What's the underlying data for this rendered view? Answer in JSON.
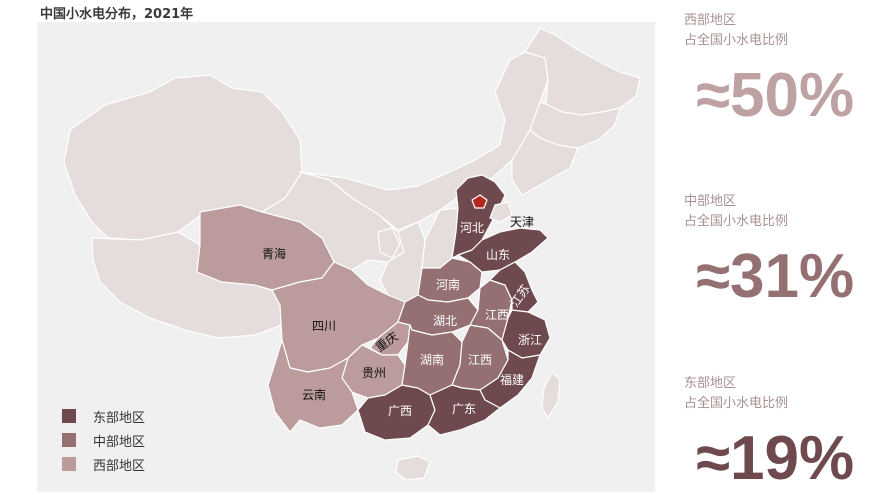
{
  "title": "中国小水电分布，2021年",
  "colors": {
    "east": "#6e4a4f",
    "central": "#957072",
    "west": "#bb9b9c",
    "other": "#e5dcdc",
    "border": "#ffffff",
    "beijing": "#b5281f",
    "value_west": "#bea2a3",
    "value_central": "#957072",
    "value_east": "#6e4a4f"
  },
  "legend": [
    {
      "label": "东部地区",
      "color": "#6e4a4f"
    },
    {
      "label": "中部地区",
      "color": "#957072"
    },
    {
      "label": "西部地区",
      "color": "#bb9b9c"
    }
  ],
  "map_labels": {
    "qinghai": "青海",
    "sichuan": "四川",
    "chongqing": "重庆",
    "guizhou": "贵州",
    "yunnan": "云南",
    "guangxi": "广西",
    "guangdong": "广东",
    "hunan": "湖南",
    "hubei": "湖北",
    "henan": "河南",
    "jiangxi": "江西",
    "fujian": "福建",
    "zhejiang": "浙江",
    "jiangsu": "江苏",
    "anhui": "江西",
    "shandong": "山东",
    "hebei": "河北",
    "tianjin": "天津"
  },
  "stats": [
    {
      "label_line1": "西部地区",
      "label_line2": "占全国小水电比例",
      "value": "≈50%"
    },
    {
      "label_line1": "中部地区",
      "label_line2": "占全国小水电比例",
      "value": "≈31%"
    },
    {
      "label_line1": "东部地区",
      "label_line2": "占全国小水电比例",
      "value": "≈19%"
    }
  ]
}
